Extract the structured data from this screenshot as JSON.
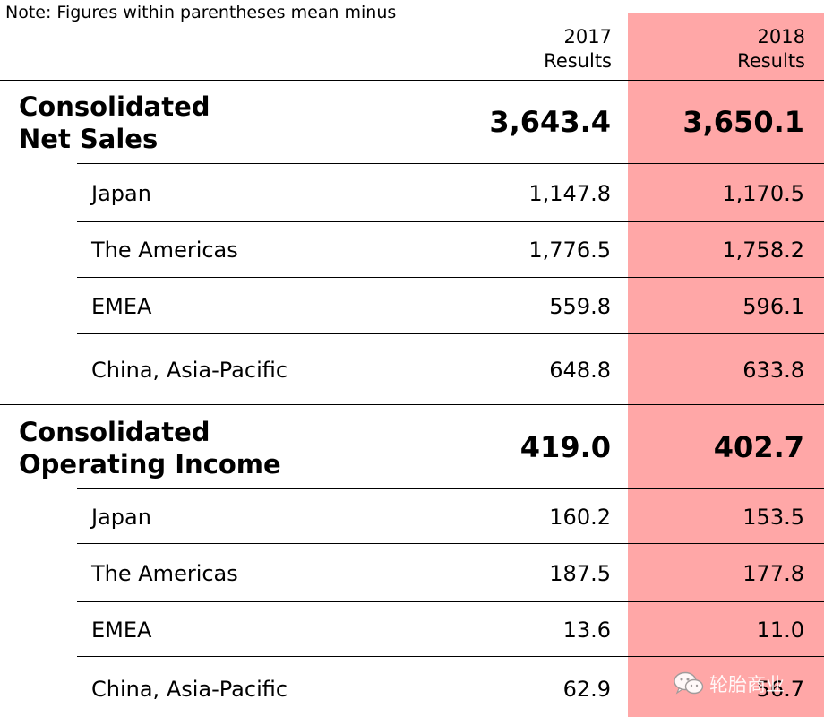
{
  "note": "Note: Figures within parentheses mean minus",
  "columns": {
    "y2017": {
      "year": "2017",
      "label": "Results"
    },
    "y2018": {
      "year": "2018",
      "label": "Results"
    }
  },
  "highlight_color": "#ffa7a7",
  "sections": [
    {
      "title_line1": "Consolidated",
      "title_line2": "Net Sales",
      "total_2017": "3,643.4",
      "total_2018": "3,650.1",
      "rows": [
        {
          "region": "Japan",
          "v2017": "1,147.8",
          "v2018": "1,170.5"
        },
        {
          "region": "The Americas",
          "v2017": "1,776.5",
          "v2018": "1,758.2"
        },
        {
          "region": "EMEA",
          "v2017": "559.8",
          "v2018": "596.1"
        },
        {
          "region": "China, Asia-Pacific",
          "v2017": "648.8",
          "v2018": "633.8"
        }
      ]
    },
    {
      "title_line1": "Consolidated",
      "title_line2": "Operating Income",
      "total_2017": "419.0",
      "total_2018": "402.7",
      "rows": [
        {
          "region": "Japan",
          "v2017": "160.2",
          "v2018": "153.5"
        },
        {
          "region": "The Americas",
          "v2017": "187.5",
          "v2018": "177.8"
        },
        {
          "region": "EMEA",
          "v2017": "13.6",
          "v2018": "11.0"
        },
        {
          "region": "China, Asia-Pacific",
          "v2017": "62.9",
          "v2018": "56.7"
        }
      ]
    }
  ],
  "watermark": {
    "text": "轮胎商业",
    "icon": "wechat-icon"
  }
}
